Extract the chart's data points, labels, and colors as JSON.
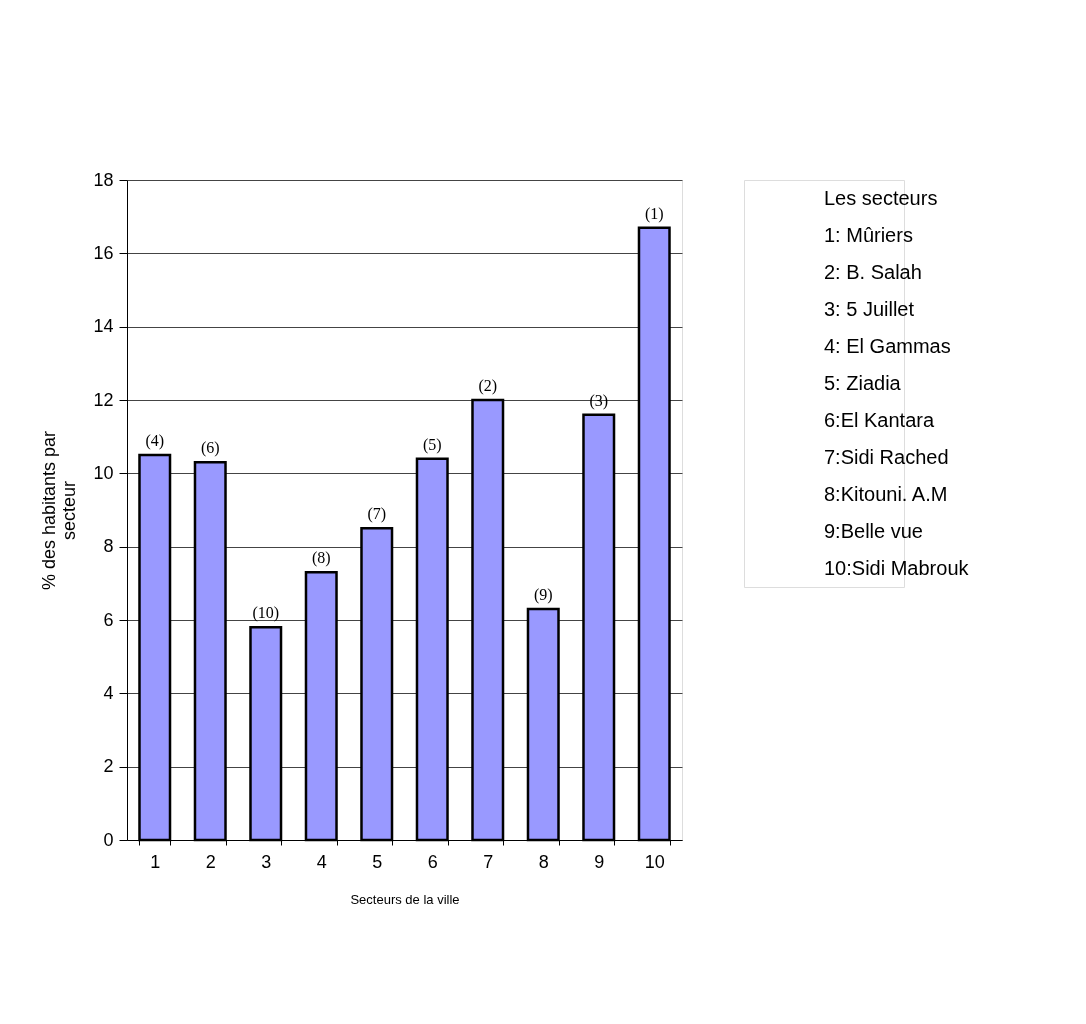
{
  "chart_data": {
    "type": "bar",
    "xlabel": "Secteurs de la ville",
    "ylabel": "% des habitants par secteur",
    "categories": [
      "1",
      "2",
      "3",
      "4",
      "5",
      "6",
      "7",
      "8",
      "9",
      "10"
    ],
    "values": [
      10.5,
      10.3,
      5.8,
      7.3,
      8.5,
      10.4,
      12.0,
      6.3,
      11.6,
      16.7
    ],
    "color": "#9999ff",
    "ylim": [
      0,
      18
    ],
    "yticks": [
      0,
      2,
      4,
      6,
      8,
      10,
      12,
      14,
      16,
      18
    ],
    "grid": "y",
    "annotations": [
      {
        "text": "(4)",
        "x": "1",
        "y": 10.5
      },
      {
        "text": "(6)",
        "x": "2",
        "y": 10.3
      },
      {
        "text": "(10)",
        "x": "3",
        "y": 5.8
      },
      {
        "text": "(8)",
        "x": "4",
        "y": 7.3
      },
      {
        "text": "(7)",
        "x": "5",
        "y": 8.5
      },
      {
        "text": "(5)",
        "x": "6",
        "y": 10.4
      },
      {
        "text": "(2)",
        "x": "7",
        "y": 12.0
      },
      {
        "text": "(9)",
        "x": "8",
        "y": 6.3
      },
      {
        "text": "(3)",
        "x": "9",
        "y": 11.6
      },
      {
        "text": "(1)",
        "x": "10",
        "y": 16.7
      },
      "Les secteurs",
      "1: Mûriers",
      "2: B. Salah",
      "3: 5 Juillet",
      "4: El Gammas",
      "5: Ziadia",
      "6:El Kantara",
      "7:Sidi Rached",
      "8:Kitouni. A.M",
      "9:Belle vue",
      "10:Sidi Mabrouk"
    ]
  }
}
